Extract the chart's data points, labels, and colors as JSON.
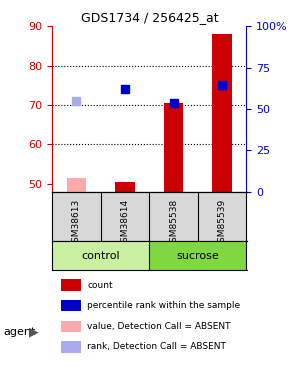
{
  "title": "GDS1734 / 256425_at",
  "samples": [
    "GSM38613",
    "GSM38614",
    "GSM85538",
    "GSM85539"
  ],
  "groups": [
    "control",
    "control",
    "sucrose",
    "sucrose"
  ],
  "group_labels": [
    "control",
    "sucrose"
  ],
  "group_colors": [
    "#c8f0a0",
    "#90e060"
  ],
  "ylim_left": [
    48,
    90
  ],
  "ylim_right": [
    0,
    100
  ],
  "yticks_left": [
    50,
    60,
    70,
    80,
    90
  ],
  "yticks_right": [
    0,
    25,
    50,
    75,
    100
  ],
  "ytick_labels_right": [
    "0",
    "25",
    "50",
    "75",
    "100%"
  ],
  "red_bar_values": [
    51.5,
    50.5,
    70.5,
    88
  ],
  "blue_marker_values": [
    71,
    74,
    70.5,
    75
  ],
  "red_bar_absent": [
    true,
    false,
    false,
    false
  ],
  "blue_marker_absent": [
    true,
    false,
    false,
    false
  ],
  "bar_width": 0.4,
  "bar_color_present": "#cc0000",
  "bar_color_absent": "#ffaaaa",
  "marker_color_present": "#0000cc",
  "marker_color_absent": "#aaaaee",
  "marker_size": 6,
  "legend_items": [
    {
      "label": "count",
      "color": "#cc0000",
      "type": "rect"
    },
    {
      "label": "percentile rank within the sample",
      "color": "#0000cc",
      "type": "rect"
    },
    {
      "label": "value, Detection Call = ABSENT",
      "color": "#ffaaaa",
      "type": "rect"
    },
    {
      "label": "rank, Detection Call = ABSENT",
      "color": "#aaaaee",
      "type": "rect"
    }
  ],
  "agent_label": "agent",
  "xlabel_color": "#000000",
  "left_axis_color": "#cc0000",
  "right_axis_color": "#0000cc",
  "grid_color": "#000000",
  "background_color": "#ffffff"
}
